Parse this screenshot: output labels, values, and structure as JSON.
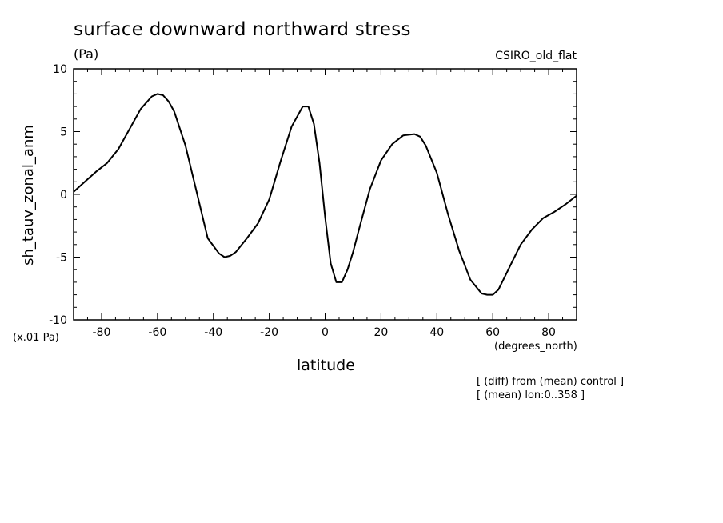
{
  "header": {
    "title": "surface downward northward stress",
    "units": "(Pa)",
    "model": "CSIRO_old_flat"
  },
  "axes": {
    "scale_note": "(x.01 Pa)",
    "x_units": "(degrees_north)",
    "x_label": "latitude",
    "y_label": "sh_tauv_zonal_anm"
  },
  "notes": {
    "line1": "[ (diff) from (mean) control ]",
    "line2": "[ (mean) lon:0..358 ]"
  },
  "chart_data": {
    "type": "line",
    "title": "surface downward northward stress",
    "xlabel": "latitude",
    "ylabel": "sh_tauv_zonal_anm",
    "xlim": [
      -90,
      90
    ],
    "ylim": [
      -10,
      10
    ],
    "x_ticks": [
      -80,
      -60,
      -40,
      -20,
      0,
      20,
      40,
      60,
      80
    ],
    "x_tick_labels": [
      "-80",
      "-60",
      "-40",
      "-20",
      "0",
      "20",
      "40",
      "60",
      "80"
    ],
    "y_ticks": [
      -10,
      -5,
      0,
      5,
      10
    ],
    "y_tick_labels": [
      "-10",
      "-5",
      "0",
      "5",
      "10"
    ],
    "grid": false,
    "series": [
      {
        "color": "#000000",
        "x": [
          -90,
          -86,
          -82,
          -78,
          -74,
          -70,
          -66,
          -62,
          -60,
          -58,
          -56,
          -54,
          -50,
          -46,
          -42,
          -38,
          -36,
          -34,
          -32,
          -28,
          -24,
          -20,
          -16,
          -12,
          -8,
          -6,
          -4,
          -2,
          0,
          2,
          4,
          6,
          8,
          10,
          12,
          16,
          20,
          24,
          28,
          32,
          34,
          36,
          40,
          44,
          48,
          52,
          56,
          58,
          60,
          62,
          66,
          70,
          74,
          78,
          82,
          86,
          90
        ],
        "y": [
          0.2,
          1.0,
          1.8,
          2.5,
          3.6,
          5.2,
          6.8,
          7.8,
          8.0,
          7.9,
          7.4,
          6.6,
          3.9,
          0.2,
          -3.5,
          -4.7,
          -5.0,
          -4.9,
          -4.6,
          -3.5,
          -2.3,
          -0.4,
          2.6,
          5.4,
          7.0,
          7.0,
          5.6,
          2.5,
          -1.8,
          -5.5,
          -7.0,
          -7.0,
          -6.0,
          -4.6,
          -2.9,
          0.4,
          2.7,
          4.0,
          4.7,
          4.8,
          4.6,
          3.9,
          1.7,
          -1.6,
          -4.5,
          -6.8,
          -7.9,
          -8.0,
          -8.0,
          -7.6,
          -5.8,
          -4.0,
          -2.8,
          -1.9,
          -1.4,
          -0.8,
          -0.1
        ]
      }
    ]
  }
}
